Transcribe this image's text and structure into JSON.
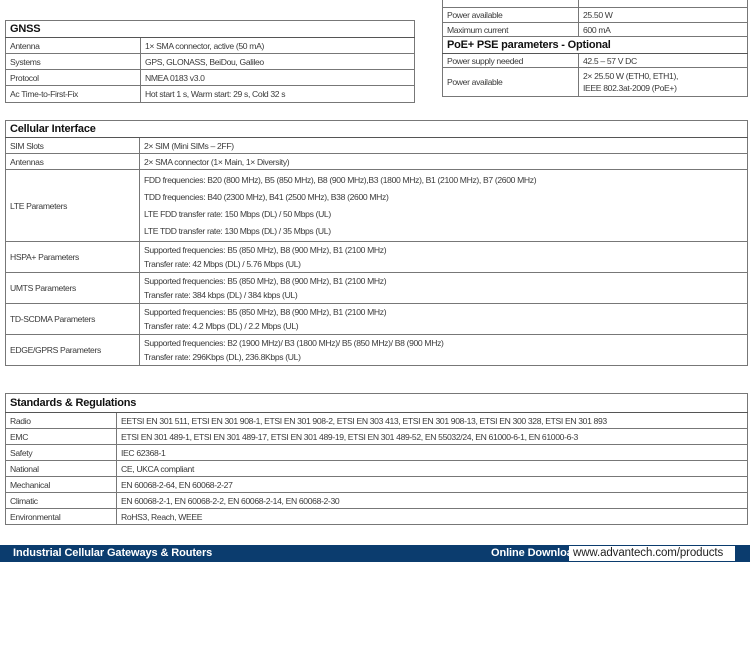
{
  "power": {
    "rows": [
      {
        "label": "",
        "value": ""
      },
      {
        "label": "Power available",
        "value": "25.50 W"
      },
      {
        "label": "Maximum current",
        "value": "600 mA"
      }
    ],
    "poe_title": "PoE+ PSE parameters - Optional",
    "poe_rows": [
      {
        "label": "Power supply needed",
        "value": [
          "42.5 – 57 V DC"
        ]
      },
      {
        "label": "Power available",
        "value": [
          "2× 25.50 W (ETH0, ETH1),",
          "IEEE 802.3at-2009 (PoE+)"
        ]
      }
    ]
  },
  "gnss": {
    "title": "GNSS",
    "rows": [
      {
        "label": "Antenna",
        "value": "1× SMA connector, active (50 mA)"
      },
      {
        "label": "Systems",
        "value": "GPS, GLONASS, BeiDou, Galileo"
      },
      {
        "label": "Protocol",
        "value": "NMEA 0183 v3.0"
      },
      {
        "label": "Ac Time-to-First-Fix",
        "value": "Hot start 1 s, Warm start: 29 s, Cold 32 s"
      }
    ]
  },
  "cellular": {
    "title": "Cellular Interface",
    "rows": [
      {
        "label": "SIM Slots",
        "value": [
          "2× SIM (Mini SIMs – 2FF)"
        ]
      },
      {
        "label": "Antennas",
        "value": [
          "2× SMA connector (1× Main, 1× Diversity)"
        ]
      },
      {
        "label": "LTE Parameters",
        "value": [
          "FDD frequencies: B20 (800 MHz), B5 (850 MHz), B8 (900 MHz),B3 (1800 MHz), B1 (2100 MHz), B7 (2600 MHz)",
          "TDD frequencies: B40 (2300 MHz), B41 (2500 MHz), B38 (2600 MHz)",
          "LTE FDD transfer rate: 150 Mbps (DL) / 50 Mbps (UL)",
          "LTE TDD transfer rate: 130 Mbps (DL) / 35 Mbps (UL)"
        ]
      },
      {
        "label": "HSPA+ Parameters",
        "value": [
          "Supported frequencies: B5 (850 MHz), B8 (900 MHz), B1 (2100 MHz)",
          "Transfer rate: 42 Mbps (DL) / 5.76 Mbps (UL)"
        ]
      },
      {
        "label": "UMTS Parameters",
        "value": [
          "Supported frequencies: B5 (850 MHz), B8 (900 MHz), B1 (2100 MHz)",
          "Transfer rate: 384 kbps (DL) / 384 kbps (UL)"
        ]
      },
      {
        "label": "TD-SCDMA Parameters",
        "value": [
          "Supported frequencies: B5 (850 MHz), B8 (900 MHz), B1 (2100 MHz)",
          "Transfer rate: 4.2 Mbps (DL) / 2.2 Mbps (UL)"
        ]
      },
      {
        "label": "EDGE/GPRS Parameters",
        "value": [
          "Supported frequencies: B2 (1900 MHz)/ B3 (1800 MHz)/ B5 (850 MHz)/ B8 (900 MHz)",
          "Transfer rate: 296Kbps (DL), 236.8Kbps (UL)"
        ]
      }
    ]
  },
  "standards": {
    "title": "Standards & Regulations",
    "rows": [
      {
        "label": "Radio",
        "value": "EETSI EN 301 511, ETSI EN 301 908-1, ETSI EN 301 908-2, ETSI EN 303 413, ETSI EN 301 908-13, ETSI EN 300 328, ETSI EN 301 893"
      },
      {
        "label": "EMC",
        "value": "ETSI EN 301 489-1, ETSI EN 301 489-17, ETSI EN 301 489-19, ETSI EN 301 489-52, EN 55032/24, EN 61000-6-1, EN 61000-6-3"
      },
      {
        "label": "Safety",
        "value": "IEC 62368-1"
      },
      {
        "label": "National",
        "value": "CE, UKCA compliant"
      },
      {
        "label": "Mechanical",
        "value": "EN 60068-2-64, EN 60068-2-27"
      },
      {
        "label": "Climatic",
        "value": "EN 60068-2-1, EN 60068-2-2, EN 60068-2-14, EN 60068-2-30"
      },
      {
        "label": "Environmental",
        "value": "RoHS3, Reach, WEEE"
      }
    ]
  },
  "footer": {
    "title": "Industrial Cellular Gateways & Routers",
    "download_label": "Online Download",
    "url": "www.advantech.com/products",
    "color": "#0b3c6e"
  }
}
